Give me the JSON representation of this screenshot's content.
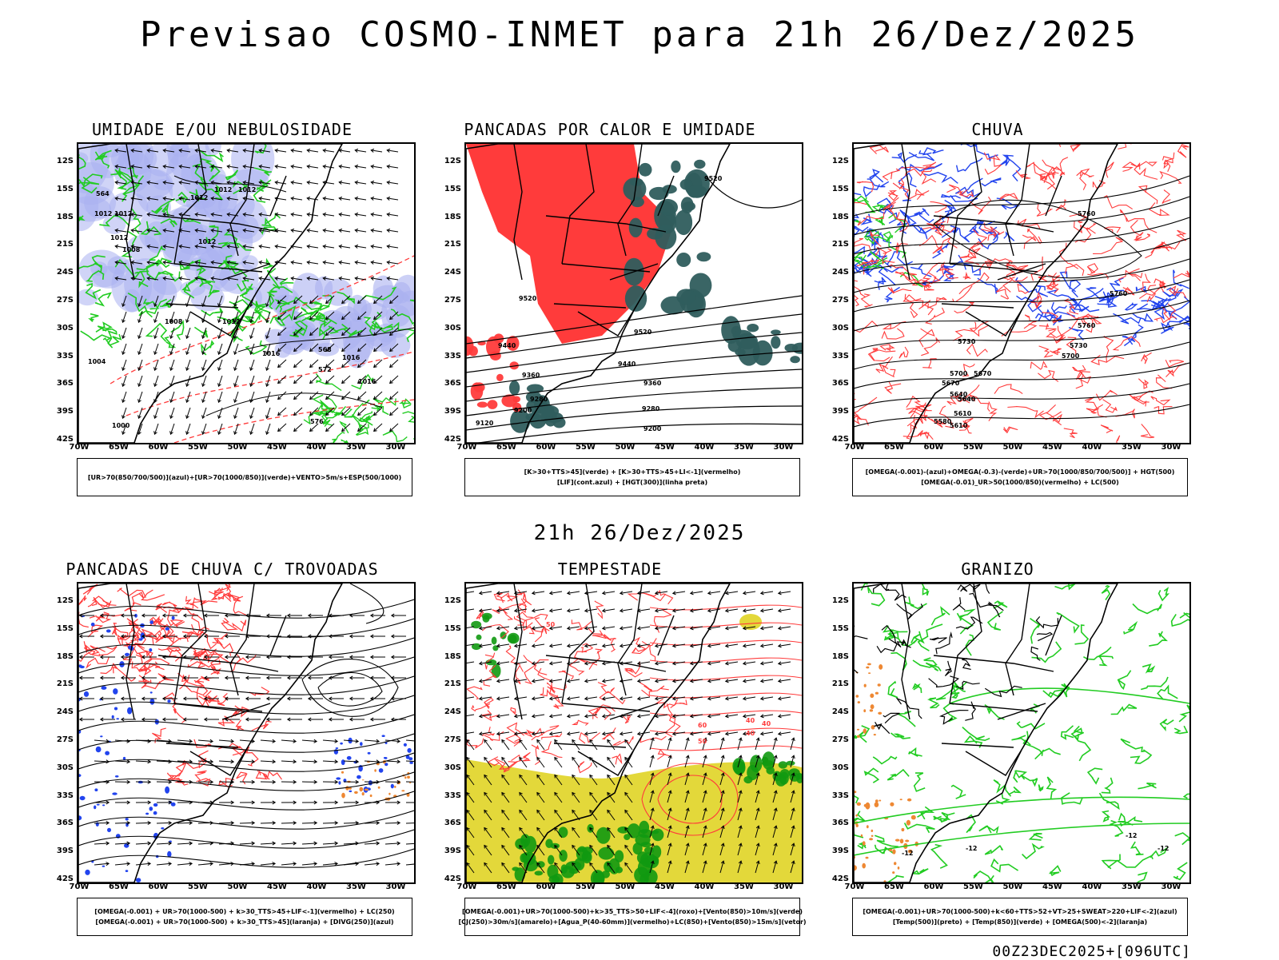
{
  "header": {
    "title": "Previsao COSMO-INMET  para 21h 26/Dez/2025",
    "mid_date": "21h 26/Dez/2025",
    "footer_code": "00Z23DEC2025+[096UTC]"
  },
  "axes": {
    "lat_labels": [
      "12S",
      "15S",
      "18S",
      "21S",
      "24S",
      "27S",
      "30S",
      "33S",
      "36S",
      "39S",
      "42S"
    ],
    "lon_labels": [
      "70W",
      "65W",
      "60W",
      "55W",
      "50W",
      "45W",
      "40W",
      "35W",
      "30W"
    ]
  },
  "colors": {
    "humidity_blue": "#aab0f0",
    "green": "#22cc22",
    "red": "#ff3b3b",
    "dark_teal": "#2f5d5d",
    "blue": "#2244ee",
    "yellow": "#e3d83a",
    "orange": "#ee8833",
    "dark_green": "#119911"
  },
  "panels": [
    {
      "id": "umidade",
      "title": "UMIDADE E/OU NEBULOSIDADE",
      "legend": [
        "[UR>70(850/700/500)](azul)+[UR>70(1000/850)](verde)+VENTO>5m/s+ESP(500/1000)"
      ],
      "contour_labels": [
        "1012",
        "1012",
        "1012",
        "1012",
        "1012",
        "1012",
        "1012",
        "1008",
        "1012",
        "1016",
        "1008",
        "1004",
        "1000",
        "1016",
        "1016",
        "564",
        "568",
        "572",
        "576"
      ]
    },
    {
      "id": "calor",
      "title": "PANCADAS POR CALOR E UMIDADE",
      "legend": [
        "[K>30+TTS>45](verde) + [K>30+TTS>45+LI<-1](vermelho)",
        "[LIF](cont.azul) + [HGT(300)](linha preta)"
      ],
      "contour_labels": [
        "9520",
        "9520",
        "9520",
        "9440",
        "9440",
        "9360",
        "9360",
        "9280",
        "9280",
        "9200",
        "9200",
        "9120"
      ]
    },
    {
      "id": "chuva",
      "title": "CHUVA",
      "legend": [
        "[OMEGA(-0.001)-(azul)+OMEGA(-0.3)-(verde)+UR>70(1000/850/700/500)] + HGT(500)",
        "[OMEGA(-0.01)_UR>50(1000/850)(vermelho) + LC(500)"
      ],
      "contour_labels": [
        "5760",
        "5760",
        "5760",
        "5730",
        "5730",
        "5700",
        "5700",
        "5670",
        "5670",
        "5640",
        "5640",
        "5610",
        "5610",
        "5580"
      ]
    },
    {
      "id": "trovoadas",
      "title": "PANCADAS DE CHUVA C/ TROVOADAS",
      "legend": [
        "[OMEGA(-0.001) + UR>70(1000-500) + k>30_TTS>45+LIF<-1](vermelho) + LC(250)",
        "[OMEGA(-0.001) + UR>70(1000-500) + k>30_TTS>45](laranja) + [DIVG(250)](azul)"
      ],
      "contour_labels": []
    },
    {
      "id": "tempestade",
      "title": "TEMPESTADE",
      "legend": [
        "[OMEGA(-0.001)+UR>70(1000-500)+k>35_TTS>50+LIF<-4](roxo)+[Vento(850)>10m/s](verde)",
        "[CJ(250)>30m/s](amarelo)+[Agua_P(40-60mm)](vermelho)+LC(850)+[Vento(850)>15m/s](vetor)"
      ],
      "contour_labels": [
        "50",
        "50",
        "40",
        "40",
        "40",
        "60"
      ]
    },
    {
      "id": "granizo",
      "title": "GRANIZO",
      "legend": [
        "[OMEGA(-0.001)+UR>70(1000-500)+k<60+TTS>52+VT>25+SWEAT>220+LIF<-2](azul)",
        "[Temp(500)](preto) + [Temp(850)](verde) + [OMEGA(500)<-2](laranja)"
      ],
      "contour_labels": [
        "-12",
        "-12",
        "-12",
        "-12"
      ]
    }
  ]
}
